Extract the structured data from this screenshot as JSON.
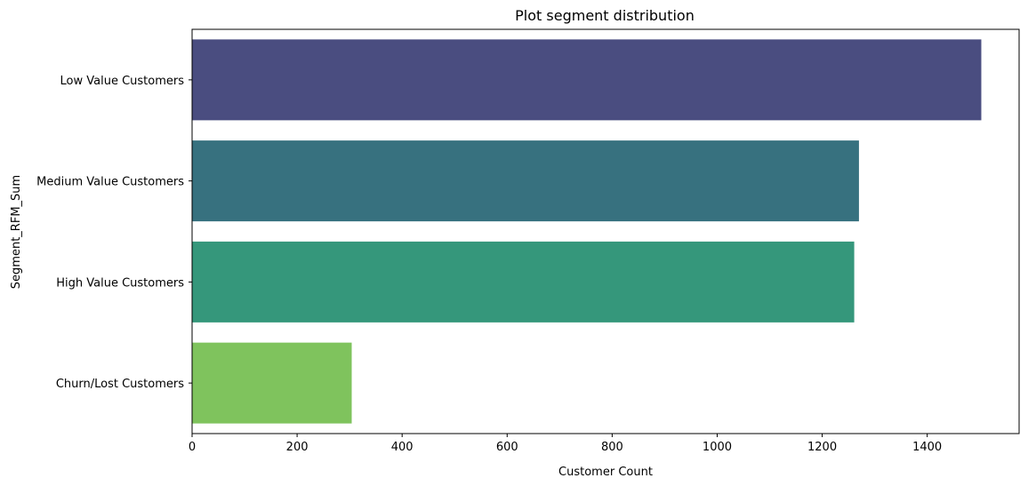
{
  "chart_data": {
    "type": "bar",
    "orientation": "horizontal",
    "title": "Plot segment distribution",
    "xlabel": "Customer Count",
    "ylabel": "Segment_RFM_Sum",
    "categories": [
      "Low Value Customers",
      "Medium Value Customers",
      "High Value Customers",
      "Churn/Lost Customers"
    ],
    "values": [
      1503,
      1270,
      1261,
      304
    ],
    "colors": [
      "#4a4d80",
      "#37717f",
      "#35977b",
      "#7fc35d"
    ],
    "xlim": [
      0,
      1575
    ],
    "xticks": [
      0,
      200,
      400,
      600,
      800,
      1000,
      1200,
      1400
    ],
    "grid": false,
    "legend": "none"
  }
}
